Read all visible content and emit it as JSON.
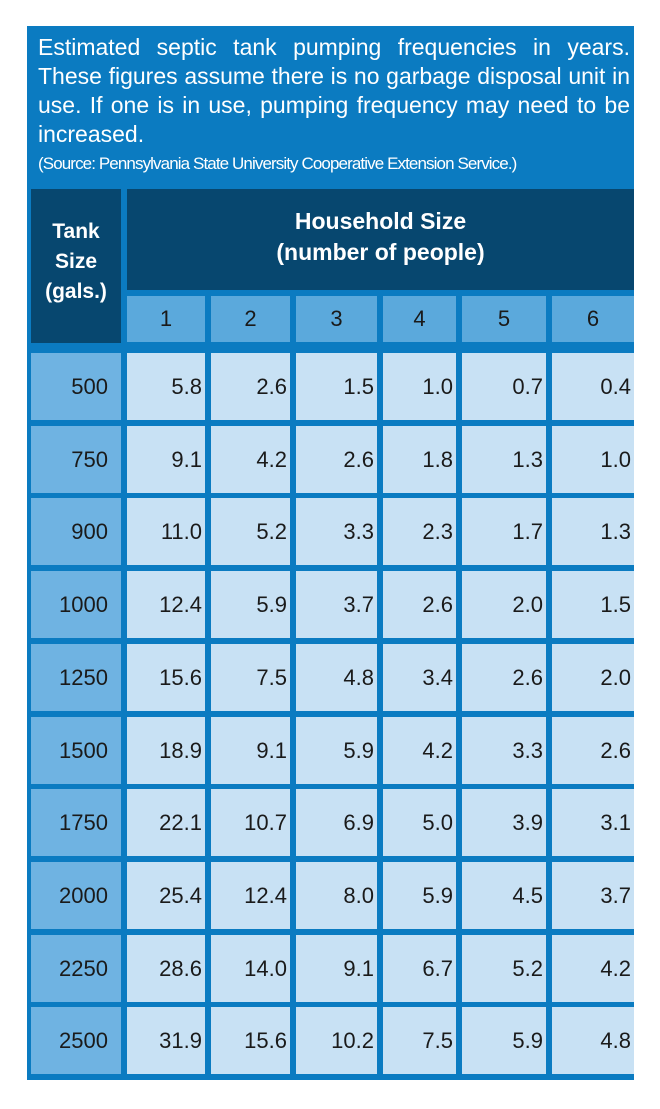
{
  "intro": "Estimated septic tank pumping frequencies in years. These figures assume there is no garbage disposal unit in use. If one is in use, pumping frequency may need to be increased.",
  "source": "(Source: Pennsylvania State University Cooperative Extension Service.)",
  "tank_header": {
    "line1": "Tank",
    "line2": "Size",
    "line3": "(gals.)"
  },
  "household_header": {
    "line1": "Household Size",
    "line2": "(number of people)"
  },
  "chart_data": {
    "type": "table",
    "columns": [
      "1",
      "2",
      "3",
      "4",
      "5",
      "6"
    ],
    "rows": [
      "500",
      "750",
      "900",
      "1000",
      "1250",
      "1500",
      "1750",
      "2000",
      "2250",
      "2500"
    ],
    "cells": [
      [
        "5.8",
        "2.6",
        "1.5",
        "1.0",
        "0.7",
        "0.4"
      ],
      [
        "9.1",
        "4.2",
        "2.6",
        "1.8",
        "1.3",
        "1.0"
      ],
      [
        "11.0",
        "5.2",
        "3.3",
        "2.3",
        "1.7",
        "1.3"
      ],
      [
        "12.4",
        "5.9",
        "3.7",
        "2.6",
        "2.0",
        "1.5"
      ],
      [
        "15.6",
        "7.5",
        "4.8",
        "3.4",
        "2.6",
        "2.0"
      ],
      [
        "18.9",
        "9.1",
        "5.9",
        "4.2",
        "3.3",
        "2.6"
      ],
      [
        "22.1",
        "10.7",
        "6.9",
        "5.0",
        "3.9",
        "3.1"
      ],
      [
        "25.4",
        "12.4",
        "8.0",
        "5.9",
        "4.5",
        "3.7"
      ],
      [
        "28.6",
        "14.0",
        "9.1",
        "6.7",
        "5.2",
        "4.2"
      ],
      [
        "31.9",
        "15.6",
        "10.2",
        "7.5",
        "5.9",
        "4.8"
      ]
    ]
  }
}
